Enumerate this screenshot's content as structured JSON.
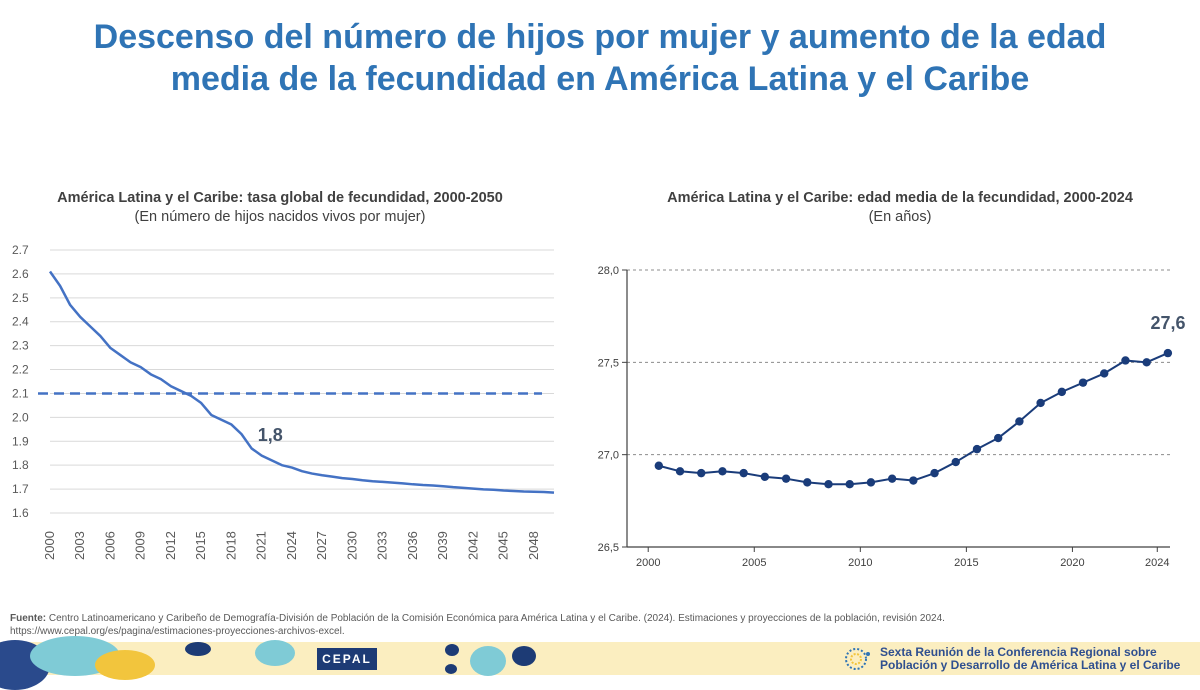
{
  "page": {
    "title": "Descenso del número de hijos por mujer y aumento de la edad media de la fecundidad en América Latina y el Caribe"
  },
  "source": {
    "label": "Fuente:",
    "text": " Centro Latinoamericano y Caribeño de Demografía-División de Población de la Comisión Económica para América Latina y el Caribe. (2024). Estimaciones y proyecciones de la población, revisión 2024.",
    "url": "https://www.cepal.org/es/pagina/estimaciones-proyecciones-archivos-excel."
  },
  "footer": {
    "logo_text": "CEPAL",
    "conference_line1": "Sexta Reunión de la Conferencia Regional sobre",
    "conference_line2": "Población y Desarrollo de América Latina y el Caribe",
    "colors": {
      "band": "#fbeec0",
      "logo_bg": "#1d3b75",
      "text": "#2f4f8f"
    }
  },
  "chart_data": [
    {
      "type": "line",
      "title": "América Latina y el Caribe: tasa global de fecundidad, 2000-2050",
      "subtitle": "(En número de hijos nacidos vivos por mujer)",
      "xlabel": "",
      "ylabel": "",
      "ylim": [
        1.6,
        2.7
      ],
      "y_ticks": [
        "1.6",
        "1.7",
        "1.8",
        "1.9",
        "2.0",
        "2.1",
        "2.2",
        "2.3",
        "2.4",
        "2.5",
        "2.6",
        "2.7"
      ],
      "x_ticks": [
        "2000",
        "2003",
        "2006",
        "2009",
        "2012",
        "2015",
        "2018",
        "2021",
        "2024",
        "2027",
        "2030",
        "2033",
        "2036",
        "2039",
        "2042",
        "2045",
        "2048"
      ],
      "grid": true,
      "line_color": "#4472c4",
      "series": [
        {
          "x": [
            2000,
            2001,
            2002,
            2003,
            2004,
            2005,
            2006,
            2007,
            2008,
            2009,
            2010,
            2011,
            2012,
            2013,
            2014,
            2015,
            2016,
            2017,
            2018,
            2019,
            2020,
            2021,
            2022,
            2023,
            2024,
            2025,
            2026,
            2027,
            2028,
            2029,
            2030,
            2031,
            2032,
            2033,
            2034,
            2035,
            2036,
            2037,
            2038,
            2039,
            2040,
            2041,
            2042,
            2043,
            2044,
            2045,
            2046,
            2047,
            2048,
            2049,
            2050
          ],
          "values": [
            2.61,
            2.55,
            2.47,
            2.42,
            2.38,
            2.34,
            2.29,
            2.26,
            2.23,
            2.21,
            2.18,
            2.16,
            2.13,
            2.11,
            2.09,
            2.06,
            2.01,
            1.99,
            1.97,
            1.93,
            1.87,
            1.84,
            1.82,
            1.8,
            1.79,
            1.775,
            1.765,
            1.758,
            1.752,
            1.746,
            1.742,
            1.737,
            1.733,
            1.73,
            1.727,
            1.724,
            1.72,
            1.717,
            1.715,
            1.712,
            1.708,
            1.705,
            1.702,
            1.699,
            1.697,
            1.694,
            1.692,
            1.69,
            1.689,
            1.688,
            1.685
          ]
        }
      ],
      "reference_line": {
        "value": 2.1,
        "style": "dashed"
      },
      "annotation": {
        "text": "1,8",
        "x": 2022,
        "y": 1.8
      }
    },
    {
      "type": "line",
      "title": "América Latina y el Caribe: edad media de la fecundidad, 2000-2024",
      "subtitle": "(En años)",
      "xlabel": "",
      "ylabel": "",
      "ylim": [
        26.5,
        28.0
      ],
      "y_ticks": [
        "26,5",
        "27,0",
        "27,5",
        "28,0"
      ],
      "x_ticks": [
        "2000",
        "2005",
        "2010",
        "2015",
        "2020",
        "2024"
      ],
      "grid": true,
      "line_color": "#1a3c7a",
      "series": [
        {
          "x": [
            2000,
            2001,
            2002,
            2003,
            2004,
            2005,
            2006,
            2007,
            2008,
            2009,
            2010,
            2011,
            2012,
            2013,
            2014,
            2015,
            2016,
            2017,
            2018,
            2019,
            2020,
            2021,
            2022,
            2023,
            2024
          ],
          "values": [
            26.94,
            26.91,
            26.9,
            26.91,
            26.9,
            26.88,
            26.87,
            26.85,
            26.84,
            26.84,
            26.85,
            26.87,
            26.86,
            26.9,
            26.96,
            27.03,
            27.09,
            27.18,
            27.28,
            27.34,
            27.39,
            27.44,
            27.51,
            27.5,
            27.55
          ]
        }
      ],
      "annotation": {
        "text": "27,6",
        "x": 2024,
        "y": 27.55
      }
    }
  ]
}
